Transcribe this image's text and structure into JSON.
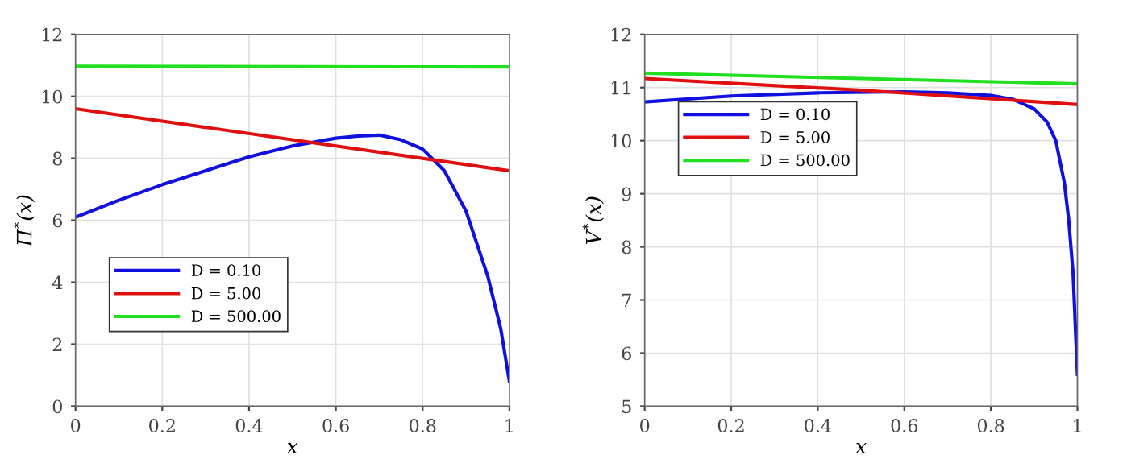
{
  "chart_data": [
    {
      "type": "line",
      "xlabel": "x",
      "ylabel": "Π$^{*}$(x)",
      "xlim": [
        0,
        1
      ],
      "ylim": [
        0,
        12
      ],
      "xticks": [
        0,
        0.2,
        0.4,
        0.6,
        0.8,
        1
      ],
      "yticks": [
        0,
        2,
        4,
        6,
        8,
        10,
        12
      ],
      "grid": true,
      "legend": "lower left",
      "line_style": "solid",
      "series": [
        {
          "name": "D = 0.10",
          "color": "#1010e0",
          "x": [
            0,
            0.1,
            0.2,
            0.3,
            0.4,
            0.5,
            0.6,
            0.65,
            0.7,
            0.75,
            0.8,
            0.85,
            0.9,
            0.95,
            0.98,
            1.0
          ],
          "values": [
            6.1,
            6.65,
            7.15,
            7.6,
            8.05,
            8.4,
            8.65,
            8.72,
            8.75,
            8.6,
            8.3,
            7.6,
            6.3,
            4.2,
            2.5,
            0.8
          ]
        },
        {
          "name": "D = 5.00",
          "color": "#e01010",
          "x": [
            0,
            1
          ],
          "values": [
            9.6,
            7.6
          ]
        },
        {
          "name": "D = 500.00",
          "color": "#20e020",
          "x": [
            0,
            1
          ],
          "values": [
            10.97,
            10.95
          ]
        }
      ]
    },
    {
      "type": "line",
      "xlabel": "x",
      "ylabel": "V$^{*}$(x)",
      "xlim": [
        0,
        1
      ],
      "ylim": [
        5,
        12
      ],
      "xticks": [
        0,
        0.2,
        0.4,
        0.6,
        0.8,
        1
      ],
      "yticks": [
        5,
        6,
        7,
        8,
        9,
        10,
        11,
        12
      ],
      "grid": true,
      "legend": "upper left",
      "line_style": "solid",
      "series": [
        {
          "name": "D = 0.10",
          "color": "#1010e0",
          "x": [
            0,
            0.2,
            0.4,
            0.6,
            0.7,
            0.8,
            0.85,
            0.9,
            0.93,
            0.95,
            0.97,
            0.98,
            0.99,
            1.0
          ],
          "values": [
            10.73,
            10.84,
            10.9,
            10.92,
            10.9,
            10.85,
            10.78,
            10.6,
            10.35,
            10.0,
            9.2,
            8.5,
            7.5,
            5.6
          ]
        },
        {
          "name": "D = 5.00",
          "color": "#e01010",
          "x": [
            0,
            0.5,
            1
          ],
          "values": [
            11.17,
            10.95,
            10.68
          ]
        },
        {
          "name": "D = 500.00",
          "color": "#20e020",
          "x": [
            0,
            0.5,
            1
          ],
          "values": [
            11.27,
            11.17,
            11.07
          ]
        }
      ]
    }
  ]
}
